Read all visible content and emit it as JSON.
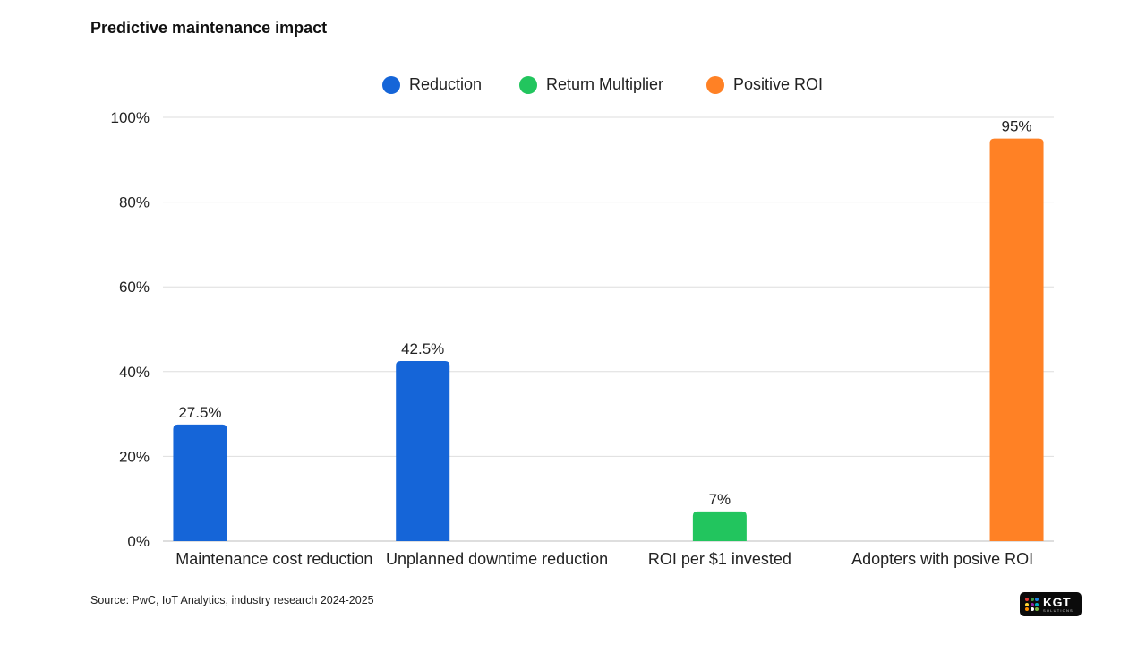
{
  "chart_data": {
    "type": "bar",
    "title": "Predictive maintenance impact",
    "categories": [
      "Maintenance cost reduction",
      "Unplanned downtime reduction",
      "ROI per $1 invested",
      "Adopters with posive ROI"
    ],
    "series": [
      {
        "name": "Reduction",
        "color": "#1565d8",
        "values": [
          27.5,
          42.5,
          null,
          null
        ],
        "labels": [
          "27.5%",
          "42.5%",
          null,
          null
        ]
      },
      {
        "name": "Return Multiplier",
        "color": "#22c55e",
        "values": [
          null,
          null,
          7,
          null
        ],
        "labels": [
          null,
          null,
          "7%",
          null
        ]
      },
      {
        "name": "Positive ROI",
        "color": "#ff8125",
        "values": [
          null,
          null,
          null,
          95
        ],
        "labels": [
          null,
          null,
          null,
          "95%"
        ]
      }
    ],
    "ylim": [
      0,
      100
    ],
    "yticks": [
      0,
      20,
      40,
      60,
      80,
      100
    ],
    "ytick_labels": [
      "0%",
      "20%",
      "40%",
      "60%",
      "80%",
      "100%"
    ],
    "xlabel": "",
    "ylabel": "",
    "grid": true,
    "legend": "top-center"
  },
  "footer": {
    "source": "Source: PwC, IoT Analytics, industry research 2024-2025"
  },
  "logo": {
    "name": "KGT",
    "subtitle": "SOLUTIONS",
    "dot_colors": [
      "#e53935",
      "#43a047",
      "#1e88e5",
      "#fdd835",
      "#8e24aa",
      "#00acc1",
      "#fb8c00",
      "#ffffff",
      "#7cb342"
    ]
  }
}
